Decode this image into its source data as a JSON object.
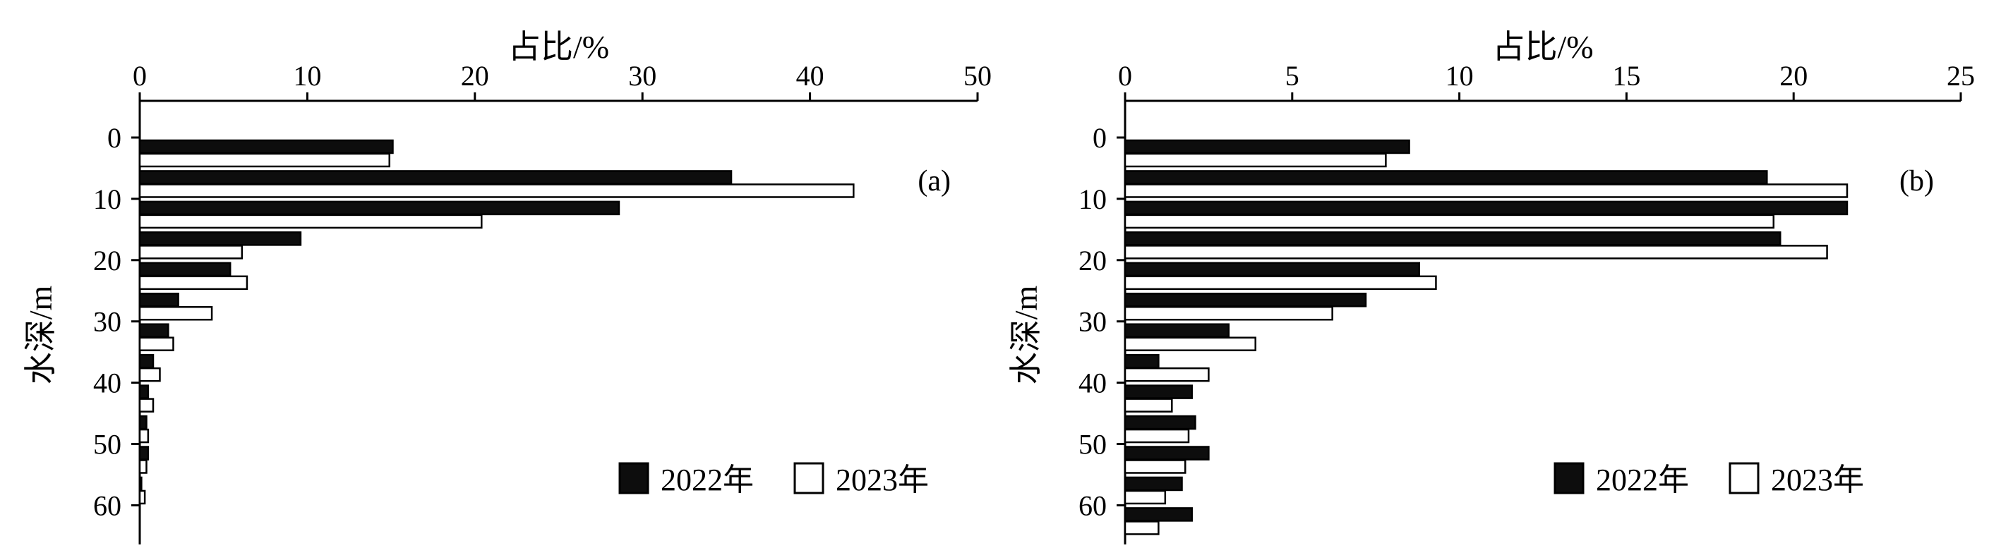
{
  "chart_data": [
    {
      "type": "bar",
      "orientation": "horizontal",
      "panel_label": "(a)",
      "xlabel": "占比/%",
      "ylabel": "水深/m",
      "xlim": [
        0,
        50
      ],
      "xticks": [
        0,
        10,
        20,
        30,
        40,
        50
      ],
      "ylim": [
        0,
        65
      ],
      "yticks": [
        0,
        10,
        20,
        30,
        40,
        50,
        60
      ],
      "bin_width": 5,
      "categories": [
        "0-5",
        "5-10",
        "10-15",
        "15-20",
        "20-25",
        "25-30",
        "30-35",
        "35-40",
        "40-45",
        "45-50",
        "50-55",
        "55-60",
        "60-65"
      ],
      "legend_position": "bottom-right",
      "series": [
        {
          "name": "2022年",
          "color": "#0d0d0d",
          "values": [
            15.1,
            35.3,
            28.6,
            9.6,
            5.4,
            2.3,
            1.7,
            0.8,
            0.5,
            0.4,
            0.5,
            0.1,
            0.0
          ]
        },
        {
          "name": "2023年",
          "color": "#ffffff",
          "values": [
            14.9,
            42.6,
            20.4,
            6.1,
            6.4,
            4.3,
            2.0,
            1.2,
            0.8,
            0.5,
            0.4,
            0.3,
            0.0
          ]
        }
      ]
    },
    {
      "type": "bar",
      "orientation": "horizontal",
      "panel_label": "(b)",
      "xlabel": "占比/%",
      "ylabel": "水深/m",
      "xlim": [
        0,
        25
      ],
      "xticks": [
        0,
        5,
        10,
        15,
        20,
        25
      ],
      "ylim": [
        0,
        65
      ],
      "yticks": [
        0,
        10,
        20,
        30,
        40,
        50,
        60
      ],
      "bin_width": 5,
      "categories": [
        "0-5",
        "5-10",
        "10-15",
        "15-20",
        "20-25",
        "25-30",
        "30-35",
        "35-40",
        "40-45",
        "45-50",
        "50-55",
        "55-60",
        "60-65"
      ],
      "legend_position": "bottom-right",
      "series": [
        {
          "name": "2022年",
          "color": "#0d0d0d",
          "values": [
            8.5,
            19.2,
            21.6,
            19.6,
            8.8,
            7.2,
            3.1,
            1.0,
            2.0,
            2.1,
            2.5,
            1.7,
            2.0
          ]
        },
        {
          "name": "2023年",
          "color": "#ffffff",
          "values": [
            7.8,
            21.6,
            19.4,
            21.0,
            9.3,
            6.2,
            3.9,
            2.5,
            1.4,
            1.9,
            1.8,
            1.2,
            1.0
          ]
        }
      ]
    }
  ]
}
